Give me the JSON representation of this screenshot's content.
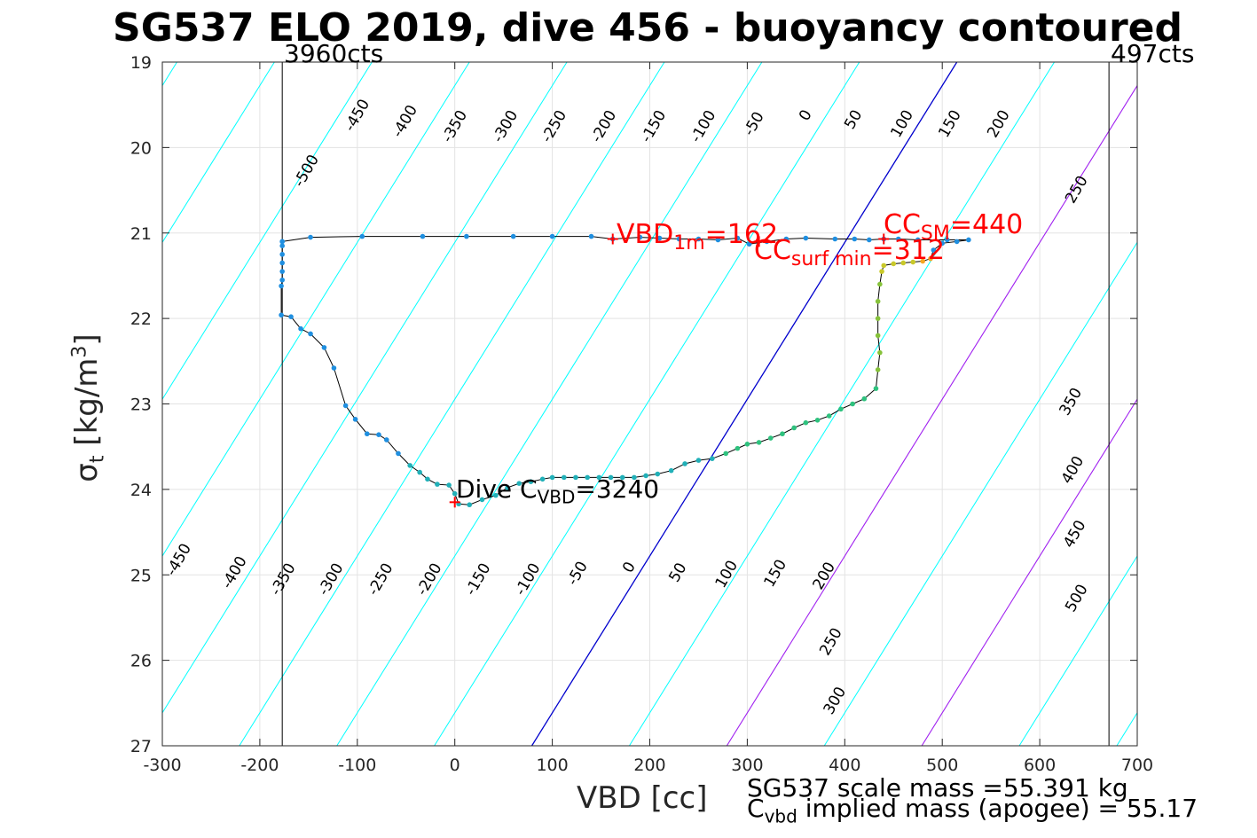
{
  "title": "SG537 ELO 2019, dive 456 - buoyancy contoured",
  "xlabel": "VBD [cc]",
  "ylabel": {
    "symbol": "σ",
    "sub": "t",
    "units_pre": "[kg/m",
    "units_sup": "3",
    "units_post": "]"
  },
  "counts": {
    "left": "3960cts",
    "right": "497cts"
  },
  "annotations": {
    "dive_c_vbd": {
      "pre": "Dive C",
      "sub": "VBD",
      "post": "=3240"
    },
    "vbd_1m": {
      "pre": "VBD",
      "sub": "1m",
      "post": "=162"
    },
    "cc_surf_min": {
      "pre": "CC",
      "sub": "surf min",
      "post": "=312"
    },
    "cc_sm": {
      "pre": "CC",
      "sub": "SM",
      "post": "=440"
    },
    "scale_mass": "SG537 scale mass =55.391 kg",
    "implied_mass": {
      "pre": "C",
      "sub": "vbd",
      "post": " implied mass (apogee) = 55.17"
    }
  },
  "colors": {
    "contour": "#00ffff",
    "zero": "#0000cd",
    "purple": "#a020f0",
    "track": "#000000",
    "marker": "#ff0000"
  },
  "chart_data": {
    "type": "scatter",
    "title": "SG537 ELO 2019, dive 456 - buoyancy contoured",
    "xlabel": "VBD [cc]",
    "ylabel": "σt [kg/m3]",
    "xlim": [
      -300,
      700
    ],
    "ylim": [
      27,
      19
    ],
    "y_reversed": true,
    "grid": true,
    "xticks": [
      -300,
      -200,
      -100,
      0,
      100,
      200,
      300,
      400,
      500,
      600,
      700
    ],
    "yticks": [
      19,
      20,
      21,
      22,
      23,
      24,
      25,
      26,
      27
    ],
    "xtick_labels": [
      "-300",
      "-200",
      "-100",
      "0",
      "100",
      "200",
      "300",
      "400",
      "500",
      "600",
      "700"
    ],
    "ytick_labels": [
      "19",
      "20",
      "21",
      "22",
      "23",
      "24",
      "25",
      "26",
      "27"
    ],
    "vertical_lines": [
      {
        "x": -177,
        "label": "3960cts"
      },
      {
        "x": 671,
        "label": "497cts"
      }
    ],
    "contour_levels": [
      -500,
      -450,
      -400,
      -350,
      -300,
      -250,
      -200,
      -150,
      -100,
      -50,
      0,
      50,
      100,
      150,
      200,
      250,
      300,
      350,
      400,
      450,
      500
    ],
    "contour_labels": [
      {
        "text": "-450",
        "x": -279,
        "y": 24.85
      },
      {
        "text": "-400",
        "x": -222,
        "y": 25.0
      },
      {
        "text": "-350",
        "x": -172,
        "y": 25.08
      },
      {
        "text": "-300",
        "x": -123,
        "y": 25.08
      },
      {
        "text": "-250",
        "x": -72,
        "y": 25.08
      },
      {
        "text": "-200",
        "x": -22,
        "y": 25.08
      },
      {
        "text": "-150",
        "x": 28,
        "y": 25.08
      },
      {
        "text": "-100",
        "x": 79,
        "y": 25.08
      },
      {
        "text": "-50",
        "x": 130,
        "y": 25.01
      },
      {
        "text": "0",
        "x": 183,
        "y": 24.94
      },
      {
        "text": "50",
        "x": 233,
        "y": 25.0
      },
      {
        "text": "100",
        "x": 283,
        "y": 25.02
      },
      {
        "text": "150",
        "x": 333,
        "y": 25.01
      },
      {
        "text": "200",
        "x": 383,
        "y": 25.04
      },
      {
        "text": "250",
        "x": 390,
        "y": 25.81
      },
      {
        "text": "300",
        "x": 394,
        "y": 26.5
      },
      {
        "text": "350",
        "x": 636,
        "y": 23.0
      },
      {
        "text": "400",
        "x": 638,
        "y": 23.8
      },
      {
        "text": "450",
        "x": 640,
        "y": 24.55
      },
      {
        "text": "500",
        "x": 642,
        "y": 25.3
      },
      {
        "text": "250",
        "x": 642,
        "y": 20.52
      },
      {
        "text": "-500",
        "x": -148,
        "y": 20.3
      },
      {
        "text": "-450",
        "x": -96,
        "y": 19.65
      },
      {
        "text": "-400",
        "x": -47,
        "y": 19.72
      },
      {
        "text": "-350",
        "x": 4,
        "y": 19.78
      },
      {
        "text": "-300",
        "x": 56,
        "y": 19.78
      },
      {
        "text": "-250",
        "x": 106,
        "y": 19.78
      },
      {
        "text": "-200",
        "x": 157,
        "y": 19.78
      },
      {
        "text": "-150",
        "x": 208,
        "y": 19.78
      },
      {
        "text": "-100",
        "x": 259,
        "y": 19.78
      },
      {
        "text": "-50",
        "x": 311,
        "y": 19.75
      },
      {
        "text": "0",
        "x": 364,
        "y": 19.65
      },
      {
        "text": "50",
        "x": 413,
        "y": 19.7
      },
      {
        "text": "100",
        "x": 463,
        "y": 19.75
      },
      {
        "text": "150",
        "x": 512,
        "y": 19.75
      },
      {
        "text": "200",
        "x": 562,
        "y": 19.75
      }
    ],
    "markers": [
      {
        "x": 0,
        "y": 24.15
      },
      {
        "x": 162,
        "y": 21.07
      },
      {
        "x": 312,
        "y": 21.1
      },
      {
        "x": 440,
        "y": 21.07
      }
    ],
    "track": [
      [
        -177,
        21.1
      ],
      [
        -177,
        21.15
      ],
      [
        -177,
        21.25
      ],
      [
        -177,
        21.35
      ],
      [
        -177,
        21.45
      ],
      [
        -177,
        21.55
      ],
      [
        -178,
        21.62
      ],
      [
        -178,
        21.96
      ],
      [
        -168,
        21.98
      ],
      [
        -158,
        22.12
      ],
      [
        -148,
        22.18
      ],
      [
        -134,
        22.34
      ],
      [
        -124,
        22.58
      ],
      [
        -112,
        23.02
      ],
      [
        -102,
        23.18
      ],
      [
        -90,
        23.35
      ],
      [
        -78,
        23.36
      ],
      [
        -70,
        23.42
      ],
      [
        -58,
        23.58
      ],
      [
        -46,
        23.72
      ],
      [
        -36,
        23.8
      ],
      [
        -28,
        23.88
      ],
      [
        -18,
        23.94
      ],
      [
        -6,
        23.95
      ],
      [
        0,
        24.05
      ],
      [
        4,
        24.17
      ],
      [
        15,
        24.18
      ],
      [
        28,
        24.12
      ],
      [
        42,
        24.07
      ],
      [
        54,
        23.98
      ],
      [
        66,
        23.93
      ],
      [
        78,
        23.91
      ],
      [
        90,
        23.88
      ],
      [
        100,
        23.86
      ],
      [
        112,
        23.86
      ],
      [
        124,
        23.86
      ],
      [
        136,
        23.86
      ],
      [
        148,
        23.86
      ],
      [
        160,
        23.86
      ],
      [
        172,
        23.86
      ],
      [
        184,
        23.86
      ],
      [
        196,
        23.84
      ],
      [
        208,
        23.82
      ],
      [
        222,
        23.78
      ],
      [
        236,
        23.7
      ],
      [
        250,
        23.66
      ],
      [
        264,
        23.64
      ],
      [
        278,
        23.58
      ],
      [
        290,
        23.52
      ],
      [
        300,
        23.47
      ],
      [
        312,
        23.45
      ],
      [
        324,
        23.4
      ],
      [
        336,
        23.35
      ],
      [
        348,
        23.28
      ],
      [
        360,
        23.22
      ],
      [
        372,
        23.19
      ],
      [
        384,
        23.14
      ],
      [
        396,
        23.06
      ],
      [
        408,
        23.0
      ],
      [
        420,
        22.94
      ],
      [
        432,
        22.82
      ],
      [
        434,
        22.6
      ],
      [
        436,
        22.4
      ],
      [
        434,
        22.2
      ],
      [
        434,
        22.0
      ],
      [
        434,
        21.8
      ],
      [
        436,
        21.6
      ],
      [
        438,
        21.45
      ],
      [
        440,
        21.38
      ],
      [
        450,
        21.36
      ],
      [
        460,
        21.35
      ],
      [
        470,
        21.34
      ],
      [
        480,
        21.33
      ],
      [
        488,
        21.3
      ],
      [
        491,
        21.2
      ],
      [
        500,
        21.12
      ],
      [
        515,
        21.1
      ],
      [
        527,
        21.08
      ],
      [
        505,
        21.08
      ],
      [
        475,
        21.08
      ],
      [
        455,
        21.07
      ],
      [
        440,
        21.07
      ],
      [
        425,
        21.08
      ],
      [
        410,
        21.07
      ],
      [
        390,
        21.07
      ],
      [
        360,
        21.06
      ],
      [
        340,
        21.07
      ],
      [
        320,
        21.1
      ],
      [
        302,
        21.13
      ],
      [
        290,
        21.06
      ],
      [
        270,
        21.08
      ],
      [
        250,
        21.07
      ],
      [
        230,
        21.07
      ],
      [
        210,
        21.06
      ],
      [
        190,
        21.05
      ],
      [
        162,
        21.07
      ],
      [
        140,
        21.04
      ],
      [
        100,
        21.04
      ],
      [
        60,
        21.04
      ],
      [
        12,
        21.04
      ],
      [
        -33,
        21.04
      ],
      [
        -95,
        21.04
      ],
      [
        -148,
        21.05
      ],
      [
        -177,
        21.1
      ]
    ]
  }
}
